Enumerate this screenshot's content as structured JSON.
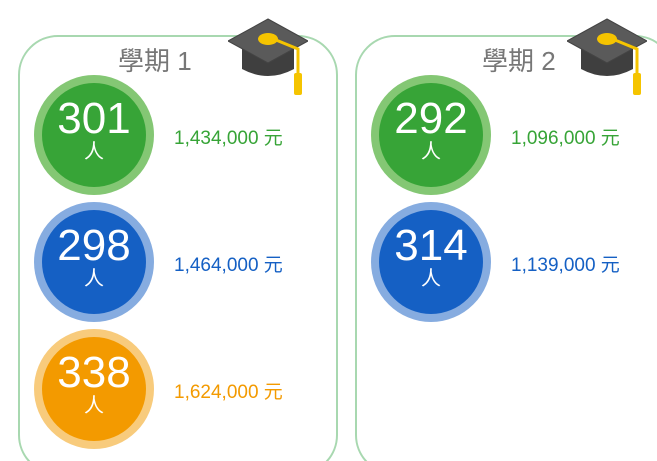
{
  "panels": [
    {
      "title": "學期 1",
      "items": [
        {
          "count": "301",
          "unit": "人",
          "amount": "1,434,000 元"
        },
        {
          "count": "298",
          "unit": "人",
          "amount": "1,464,000 元"
        },
        {
          "count": "338",
          "unit": "人",
          "amount": "1,624,000 元"
        }
      ]
    },
    {
      "title": "學期 2",
      "items": [
        {
          "count": "292",
          "unit": "人",
          "amount": "1,096,000 元"
        },
        {
          "count": "314",
          "unit": "人",
          "amount": "1,139,000 元"
        }
      ]
    }
  ]
}
